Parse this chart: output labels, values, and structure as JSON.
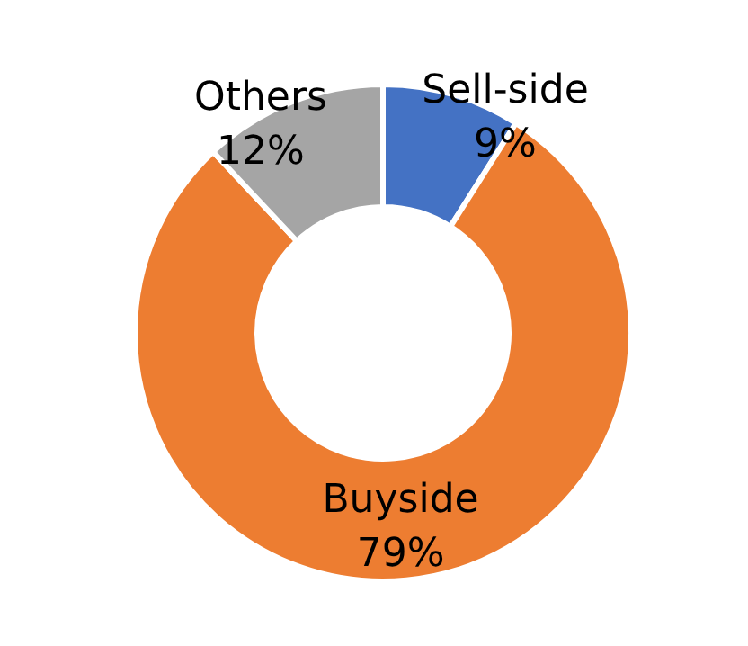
{
  "chart_data": {
    "type": "donut",
    "categories": [
      "Sell-side",
      "Buyside",
      "Others"
    ],
    "values": [
      9,
      79,
      12
    ],
    "colors": [
      "#4472c4",
      "#ed7d31",
      "#a5a5a5"
    ],
    "value_labels": [
      "9%",
      "79%",
      "12%"
    ]
  }
}
